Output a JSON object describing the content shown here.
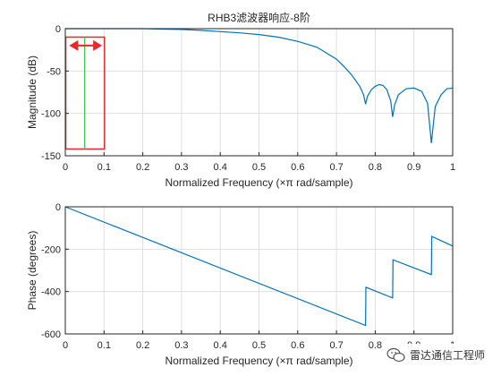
{
  "chart_data": [
    {
      "type": "line",
      "title": "RHB3滤波器响应-8阶",
      "xlabel": "Normalized Frequency  (×π rad/sample)",
      "ylabel": "Magnitude (dB)",
      "xlim": [
        0,
        1
      ],
      "ylim": [
        -150,
        0
      ],
      "xticks": [
        "0",
        "0.1",
        "0.2",
        "0.3",
        "0.4",
        "0.5",
        "0.6",
        "0.7",
        "0.8",
        "0.9",
        "1"
      ],
      "yticks": [
        "0",
        "-50",
        "-100",
        "-150"
      ],
      "grid": true,
      "series": [
        {
          "color": "#0072bd",
          "x": [
            0,
            0.05,
            0.1,
            0.15,
            0.2,
            0.25,
            0.3,
            0.35,
            0.4,
            0.45,
            0.5,
            0.55,
            0.6,
            0.65,
            0.7,
            0.72,
            0.74,
            0.76,
            0.77,
            0.775,
            0.78,
            0.79,
            0.8,
            0.81,
            0.82,
            0.83,
            0.84,
            0.845,
            0.85,
            0.86,
            0.88,
            0.9,
            0.92,
            0.935,
            0.945,
            0.955,
            0.97,
            0.985,
            1.0
          ],
          "y": [
            0,
            0,
            0,
            0,
            0,
            -0.5,
            -1,
            -2,
            -3.5,
            -5,
            -7,
            -10,
            -15,
            -22,
            -36,
            -45,
            -55,
            -68,
            -78,
            -89,
            -80,
            -72,
            -68,
            -66,
            -67,
            -72,
            -85,
            -104,
            -90,
            -78,
            -71,
            -70,
            -74,
            -88,
            -135,
            -92,
            -78,
            -71,
            -70
          ]
        }
      ],
      "annotations": {
        "marker_box": {
          "x0": 0.0,
          "x1": 0.1,
          "y0": -10,
          "y1": -142,
          "color": "#e8292c"
        },
        "marker_line_x": 0.05,
        "marker_line_color": "#2ecc40",
        "double_arrow": {
          "x0": 0.01,
          "x1": 0.095,
          "y": -20,
          "color": "#e8292c"
        }
      }
    },
    {
      "type": "line",
      "title": "",
      "xlabel": "Normalized Frequency  (×π rad/sample)",
      "ylabel": "Phase (degrees)",
      "xlim": [
        0,
        1
      ],
      "ylim": [
        -600,
        0
      ],
      "xticks": [
        "0",
        "0.1",
        "0.2",
        "0.3",
        "0.4",
        "0.5",
        "0.6",
        "0.7",
        "0.8",
        "0.9",
        "1"
      ],
      "yticks": [
        "0",
        "-200",
        "-400",
        "-600"
      ],
      "grid": true,
      "series": [
        {
          "color": "#0072bd",
          "x": [
            0,
            0.775,
            0.776,
            0.845,
            0.846,
            0.945,
            0.946,
            1.0
          ],
          "y": [
            0,
            -560,
            -380,
            -430,
            -250,
            -320,
            -140,
            -185
          ]
        }
      ]
    }
  ],
  "watermark": {
    "text": "雷达通信工程师",
    "icon": "wechat-icon"
  }
}
